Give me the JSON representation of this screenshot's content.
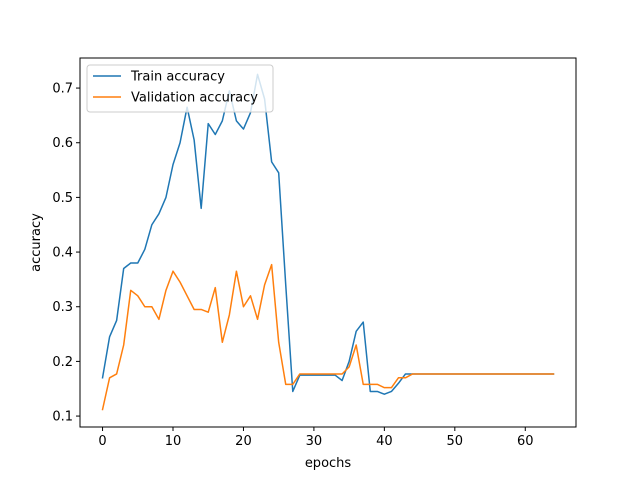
{
  "chart_data": {
    "type": "line",
    "title": "",
    "xlabel": "epochs",
    "ylabel": "accuracy",
    "xlim": [
      -3.2,
      67.2
    ],
    "ylim": [
      0.08,
      0.755
    ],
    "xticks": [
      0,
      10,
      20,
      30,
      40,
      50,
      60
    ],
    "yticks": [
      0.1,
      0.2,
      0.3,
      0.4,
      0.5,
      0.6,
      0.7
    ],
    "grid": false,
    "legend_position": "top-left",
    "series": [
      {
        "name": "Train accuracy",
        "color": "#1f77b4",
        "x": [
          0,
          1,
          2,
          3,
          4,
          5,
          6,
          7,
          8,
          9,
          10,
          11,
          12,
          13,
          14,
          15,
          16,
          17,
          18,
          19,
          20,
          21,
          22,
          23,
          24,
          25,
          26,
          27,
          28,
          29,
          30,
          31,
          32,
          33,
          34,
          35,
          36,
          37,
          38,
          39,
          40,
          41,
          42,
          43,
          44,
          45,
          46,
          47,
          48,
          49,
          50,
          51,
          52,
          53,
          54,
          55,
          56,
          57,
          58,
          59,
          60,
          61,
          62,
          63,
          64
        ],
        "y": [
          0.17,
          0.245,
          0.275,
          0.37,
          0.38,
          0.38,
          0.405,
          0.45,
          0.47,
          0.5,
          0.56,
          0.6,
          0.665,
          0.605,
          0.48,
          0.635,
          0.615,
          0.64,
          0.695,
          0.64,
          0.625,
          0.655,
          0.725,
          0.68,
          0.565,
          0.545,
          0.34,
          0.145,
          0.175,
          0.175,
          0.175,
          0.175,
          0.175,
          0.175,
          0.165,
          0.2,
          0.255,
          0.272,
          0.145,
          0.145,
          0.14,
          0.145,
          0.16,
          0.177,
          0.177,
          0.177,
          0.177,
          0.177,
          0.177,
          0.177,
          0.177,
          0.177,
          0.177,
          0.177,
          0.177,
          0.177,
          0.177,
          0.177,
          0.177,
          0.177,
          0.177,
          0.177,
          0.177,
          0.177,
          0.177
        ]
      },
      {
        "name": "Validation accuracy",
        "color": "#ff7f0e",
        "x": [
          0,
          1,
          2,
          3,
          4,
          5,
          6,
          7,
          8,
          9,
          10,
          11,
          12,
          13,
          14,
          15,
          16,
          17,
          18,
          19,
          20,
          21,
          22,
          23,
          24,
          25,
          26,
          27,
          28,
          29,
          30,
          31,
          32,
          33,
          34,
          35,
          36,
          37,
          38,
          39,
          40,
          41,
          42,
          43,
          44,
          45,
          46,
          47,
          48,
          49,
          50,
          51,
          52,
          53,
          54,
          55,
          56,
          57,
          58,
          59,
          60,
          61,
          62,
          63,
          64
        ],
        "y": [
          0.112,
          0.17,
          0.177,
          0.23,
          0.33,
          0.32,
          0.3,
          0.3,
          0.277,
          0.33,
          0.365,
          0.345,
          0.32,
          0.295,
          0.295,
          0.29,
          0.335,
          0.235,
          0.285,
          0.365,
          0.3,
          0.32,
          0.277,
          0.34,
          0.377,
          0.235,
          0.158,
          0.158,
          0.177,
          0.177,
          0.177,
          0.177,
          0.177,
          0.177,
          0.177,
          0.19,
          0.23,
          0.158,
          0.158,
          0.158,
          0.152,
          0.152,
          0.17,
          0.17,
          0.177,
          0.177,
          0.177,
          0.177,
          0.177,
          0.177,
          0.177,
          0.177,
          0.177,
          0.177,
          0.177,
          0.177,
          0.177,
          0.177,
          0.177,
          0.177,
          0.177,
          0.177,
          0.177,
          0.177,
          0.177
        ]
      }
    ]
  }
}
